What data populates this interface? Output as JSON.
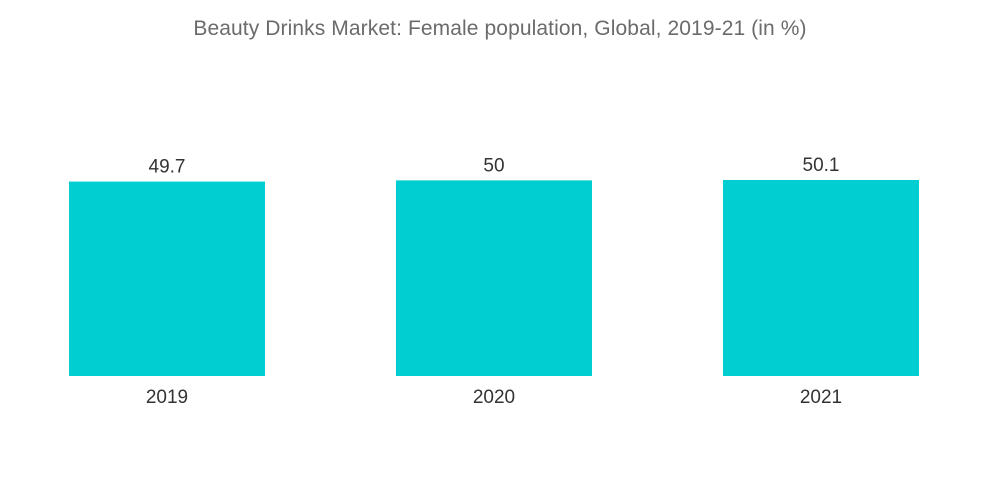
{
  "chart_data": {
    "type": "bar",
    "title": "Beauty Drinks Market: Female population, Global, 2019-21 (in %)",
    "categories": [
      "2019",
      "2020",
      "2021"
    ],
    "values": [
      49.7,
      50,
      50.1
    ],
    "value_labels": [
      "49.7",
      "50",
      "50.1"
    ],
    "xlabel": "",
    "ylabel": "",
    "ylim": [
      0,
      50.1
    ],
    "grid": false,
    "legend": "none",
    "bar_color": "#00CED1"
  }
}
